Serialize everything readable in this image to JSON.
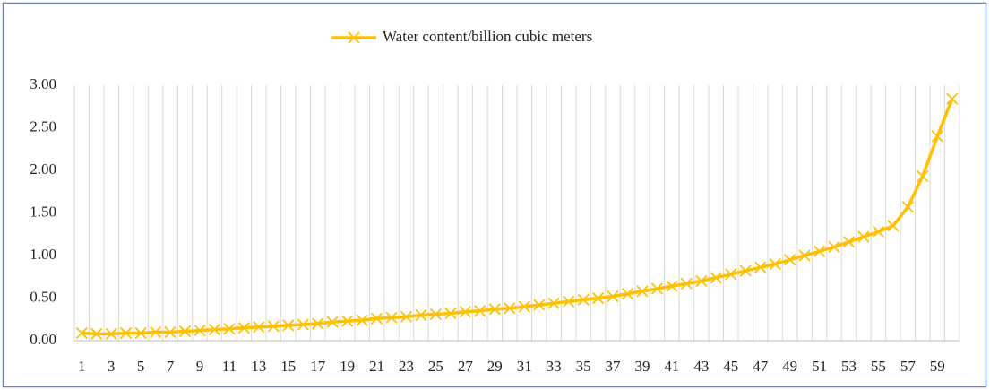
{
  "chart_data": {
    "type": "line",
    "categories": [
      1,
      null,
      3,
      null,
      5,
      null,
      7,
      null,
      9,
      null,
      11,
      null,
      13,
      null,
      15,
      null,
      17,
      null,
      19,
      null,
      21,
      null,
      23,
      null,
      25,
      null,
      27,
      null,
      29,
      null,
      31,
      null,
      33,
      null,
      35,
      null,
      37,
      null,
      39,
      null,
      41,
      null,
      43,
      null,
      45,
      null,
      47,
      null,
      49,
      null,
      51,
      null,
      53,
      null,
      55,
      null,
      57,
      null,
      59,
      null
    ],
    "series": [
      {
        "name": "Water content/billion cubic meters",
        "color": "#ffc000",
        "values": [
          0.09,
          0.08,
          0.08,
          0.09,
          0.09,
          0.1,
          0.1,
          0.11,
          0.12,
          0.13,
          0.14,
          0.15,
          0.16,
          0.17,
          0.18,
          0.19,
          0.2,
          0.22,
          0.23,
          0.24,
          0.26,
          0.27,
          0.28,
          0.3,
          0.31,
          0.32,
          0.34,
          0.35,
          0.37,
          0.38,
          0.4,
          0.42,
          0.44,
          0.46,
          0.48,
          0.5,
          0.52,
          0.55,
          0.58,
          0.61,
          0.64,
          0.67,
          0.7,
          0.74,
          0.78,
          0.82,
          0.86,
          0.9,
          0.95,
          1.0,
          1.05,
          1.1,
          1.16,
          1.22,
          1.28,
          1.35,
          1.57,
          1.93,
          2.4,
          2.84
        ]
      }
    ],
    "ylim": [
      0,
      3
    ],
    "yticks": [
      {
        "value": 0,
        "label": "0.00"
      },
      {
        "value": 0.5,
        "label": "0.50"
      },
      {
        "value": 1,
        "label": "1.00"
      },
      {
        "value": 1.5,
        "label": "1.50"
      },
      {
        "value": 2,
        "label": "2.00"
      },
      {
        "value": 2.5,
        "label": "2.50"
      },
      {
        "value": 3,
        "label": "3.00"
      }
    ],
    "grid": "x",
    "legend": "top"
  }
}
